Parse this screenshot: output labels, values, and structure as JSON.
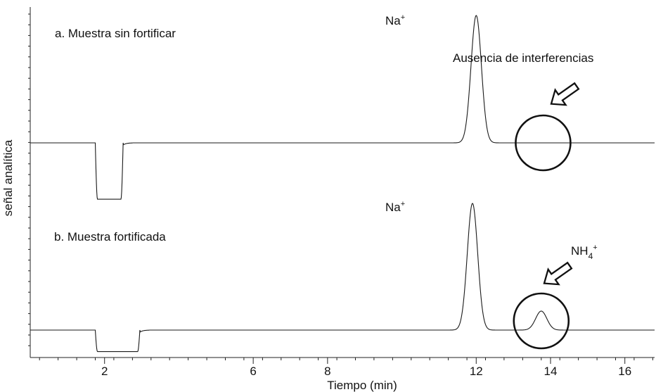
{
  "chart_data": {
    "type": "line",
    "xlabel": "Tiempo (min)",
    "ylabel": "señal analítica",
    "xlim": [
      0,
      16.8
    ],
    "x_ticks": [
      "2",
      "6",
      "8",
      "12",
      "14",
      "16"
    ],
    "x_tick_values": [
      2,
      6,
      8,
      12,
      14,
      16
    ],
    "series": [
      {
        "key": "a",
        "label": "a. Muestra sin fortificar",
        "baseline": 0,
        "peaks": [
          {
            "label": "Na",
            "sup": "+",
            "x": 12.0,
            "height": 1.0,
            "sigma": 0.14
          }
        ],
        "dip": {
          "start": 1.75,
          "end": 2.5,
          "depth": 0.45
        },
        "annotation": "Ausencia de interferencias",
        "circle_center_x": 13.8
      },
      {
        "key": "b",
        "label": "b. Muestra fortificada",
        "baseline": 0,
        "peaks": [
          {
            "label": "Na",
            "sup": "+",
            "x": 11.9,
            "height": 1.0,
            "sigma": 0.14
          },
          {
            "label": "NH",
            "sub": "4",
            "sup": "+",
            "x": 13.75,
            "height": 0.15,
            "sigma": 0.15
          }
        ],
        "dip": {
          "start": 1.75,
          "end": 2.95,
          "depth": 0.18
        },
        "circle_center_x": 13.75
      }
    ]
  }
}
